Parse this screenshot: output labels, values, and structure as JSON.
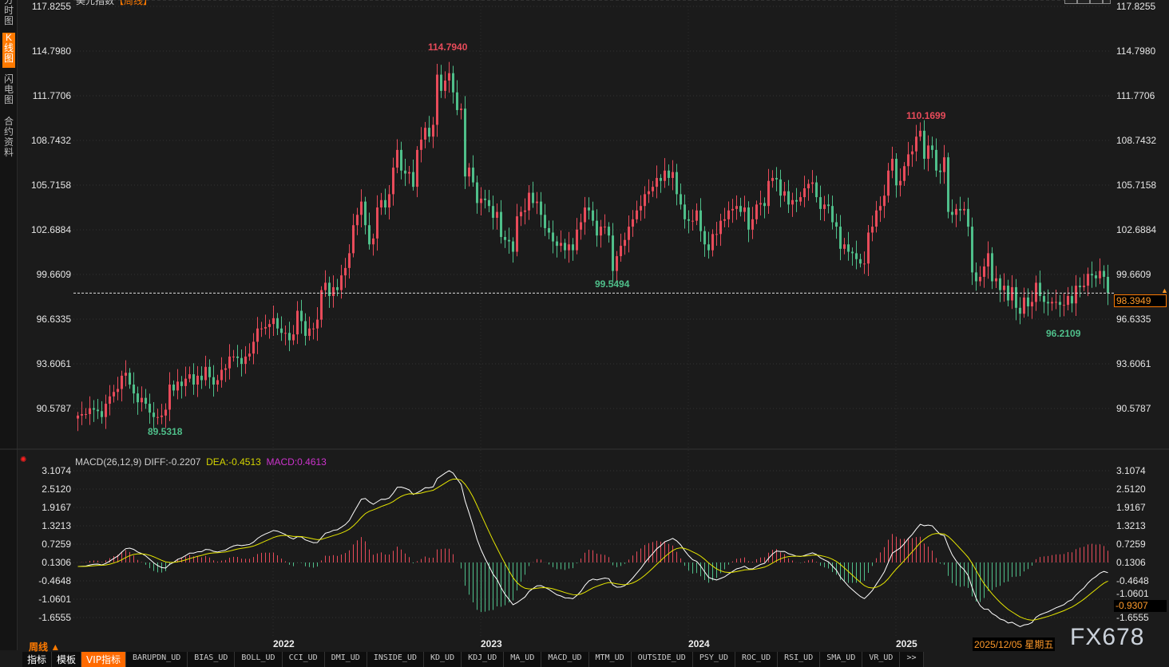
{
  "title": {
    "name": "美元指数",
    "period": "【周线】"
  },
  "sidebar": [
    {
      "label": "分时图",
      "active": false
    },
    {
      "label": "K线图",
      "active": true
    },
    {
      "label": "闪电图",
      "active": false
    },
    {
      "label": "合约资料",
      "active": false
    }
  ],
  "colors": {
    "up": "#e84b5a",
    "down": "#4fbf8a",
    "diff": "#ffffff",
    "dea": "#e6e600",
    "macd": "#cc33cc",
    "accent": "#ff7a00",
    "background": "#1b1b1b"
  },
  "chart_data": [
    {
      "type": "candlestick",
      "period": "weekly",
      "y_ticks": [
        "117.8255",
        "114.7980",
        "111.7706",
        "108.7432",
        "105.7158",
        "102.6884",
        "99.6609",
        "96.6335",
        "93.6061",
        "90.5787"
      ],
      "ylim": [
        90.5787,
        117.8255
      ],
      "x_ticks": [
        "2022",
        "2023",
        "2024",
        "2025"
      ],
      "last_price": "98.3949",
      "annotations": {
        "high1": "114.7940",
        "low1": "89.5318",
        "low2": "99.5494",
        "high2": "110.1699",
        "low3": "96.2109"
      },
      "closes": [
        90.1,
        90.2,
        90.2,
        90.6,
        90.5,
        90.4,
        90.0,
        90.9,
        91.4,
        91.7,
        91.9,
        92.8,
        93.0,
        92.2,
        91.6,
        91.0,
        91.3,
        90.9,
        90.3,
        90.0,
        90.0,
        90.1,
        90.5,
        92.2,
        91.8,
        92.4,
        92.1,
        92.6,
        92.9,
        92.2,
        92.8,
        92.5,
        93.4,
        92.7,
        92.2,
        92.5,
        93.2,
        93.3,
        94.1,
        94.1,
        94.0,
        93.6,
        94.1,
        94.3,
        95.1,
        96.0,
        96.0,
        96.1,
        96.3,
        96.7,
        96.0,
        95.7,
        95.7,
        95.2,
        95.6,
        97.2,
        96.5,
        95.5,
        96.0,
        96.0,
        96.6,
        98.6,
        99.1,
        98.2,
        98.8,
        98.6,
        99.6,
        100.1,
        101.1,
        103.0,
        103.7,
        104.6,
        103.0,
        101.7,
        102.1,
        104.2,
        104.7,
        104.2,
        105.1,
        106.9,
        108.1,
        106.7,
        106.5,
        106.6,
        105.6,
        108.1,
        108.8,
        109.6,
        109.0,
        109.8,
        113.2,
        112.1,
        112.8,
        113.3,
        112.0,
        110.8,
        110.9,
        106.3,
        106.9,
        105.9,
        104.5,
        104.8,
        104.7,
        104.3,
        103.5,
        103.9,
        102.2,
        102.0,
        101.9,
        101.2,
        103.6,
        103.9,
        104.0,
        105.2,
        104.5,
        104.6,
        103.7,
        102.8,
        102.5,
        101.9,
        101.6,
        101.8,
        101.3,
        101.7,
        101.3,
        102.7,
        103.2,
        104.2,
        104.0,
        103.3,
        102.3,
        102.9,
        102.9,
        102.3,
        99.9,
        100.9,
        101.6,
        102.0,
        102.9,
        103.4,
        104.0,
        104.3,
        105.1,
        105.3,
        105.6,
        106.2,
        106.0,
        106.7,
        106.2,
        106.6,
        105.1,
        104.4,
        103.4,
        103.3,
        103.3,
        104.0,
        102.6,
        101.7,
        101.3,
        102.4,
        102.4,
        103.3,
        103.4,
        104.0,
        104.1,
        104.3,
        103.9,
        104.2,
        102.7,
        103.4,
        104.4,
        104.5,
        104.3,
        106.0,
        106.2,
        106.1,
        105.0,
        105.3,
        104.4,
        104.7,
        104.6,
        104.9,
        105.5,
        105.8,
        105.9,
        104.9,
        104.1,
        104.4,
        104.3,
        103.2,
        102.9,
        101.4,
        101.7,
        101.2,
        101.1,
        100.7,
        100.4,
        100.4,
        102.5,
        102.9,
        104.0,
        104.3,
        105.0,
        106.7,
        107.5,
        105.7,
        106.0,
        107.0,
        107.8,
        108.0,
        109.0,
        109.4,
        107.5,
        108.4,
        108.1,
        106.7,
        106.6,
        107.6,
        103.9,
        103.7,
        104.1,
        104.0,
        104.1,
        102.9,
        99.8,
        99.2,
        99.5,
        100.2,
        101.1,
        99.2,
        99.4,
        98.6,
        98.9,
        97.9,
        98.8,
        97.4,
        97.0,
        98.1,
        97.5,
        97.8,
        99.1,
        98.2,
        97.8,
        97.7,
        97.8,
        97.8,
        97.6,
        97.6,
        98.2,
        97.7,
        98.9,
        98.8,
        98.9,
        99.7,
        99.6,
        99.4,
        99.9,
        99.5,
        98.4
      ]
    },
    {
      "type": "macd",
      "label": "MACD(26,12,9)",
      "diff": "DIFF:-0.2207",
      "dea": "DEA:-0.4513",
      "macd": "MACD:0.4613",
      "y_ticks": [
        "3.1074",
        "2.5120",
        "1.9167",
        "1.3213",
        "0.7259",
        "0.1306",
        "-0.4648",
        "-1.0601",
        "-1.6555"
      ],
      "ylim": [
        -1.6555,
        3.1074
      ],
      "current": "-0.9307"
    }
  ],
  "footer": {
    "period_label": "周线 ▲",
    "date": "2025/12/05 星期五",
    "watermark": "FX678",
    "tabs": [
      "指标",
      "模板",
      "VIP指标",
      "BARUPDN_UD",
      "BIAS_UD",
      "BOLL_UD",
      "CCI_UD",
      "DMI_UD",
      "INSIDE_UD",
      "KD_UD",
      "KDJ_UD",
      "MA_UD",
      "MACD_UD",
      "MTM_UD",
      "OUTSIDE_UD",
      "PSY_UD",
      "ROC_UD",
      "RSI_UD",
      "SMA_UD",
      "VR_UD",
      ">>"
    ]
  }
}
